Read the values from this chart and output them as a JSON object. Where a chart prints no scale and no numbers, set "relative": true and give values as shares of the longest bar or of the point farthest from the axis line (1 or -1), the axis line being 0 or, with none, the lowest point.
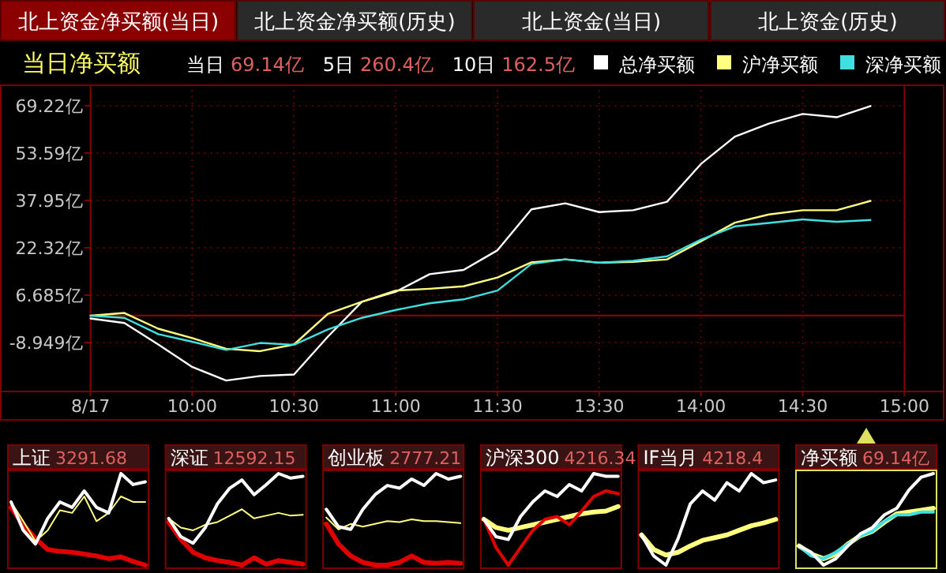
{
  "chart_data": [
    {
      "type": "line",
      "title": "当日净买额",
      "annotations": [
        "北上资金净买额(当日)",
        "北上资金净买额(历史)",
        "北上资金(当日)",
        "北上资金(历史)",
        "当日 69.14亿",
        "5日 260.4亿",
        "10日 162.5亿"
      ],
      "categories": [
        "8/17",
        null,
        null,
        "10:00",
        null,
        null,
        "10:30",
        null,
        null,
        "11:00",
        null,
        null,
        "11:30",
        null,
        null,
        "13:30",
        null,
        null,
        "14:00",
        null,
        null,
        "14:30",
        null,
        null,
        "15:00"
      ],
      "ylim": [
        -25.1,
        74.4
      ],
      "yticks": [
        {
          "value": 69.22,
          "label": "69.22亿"
        },
        {
          "value": 53.59,
          "label": "53.59亿"
        },
        {
          "value": 37.95,
          "label": "37.95亿"
        },
        {
          "value": 22.32,
          "label": "22.32亿"
        },
        {
          "value": 6.685,
          "label": "6.685亿"
        },
        {
          "value": -8.949,
          "label": "-8.949亿"
        }
      ],
      "grid": true,
      "legend": "top right",
      "ref_lines": [
        {
          "axis": "y",
          "value": 0,
          "color": "#990000"
        }
      ],
      "series": [
        {
          "name": "总净买额",
          "color": "#ffffff",
          "values": [
            -1.0,
            -2.5,
            -9.6,
            -17.0,
            -21.5,
            -20.0,
            -19.5,
            -7.0,
            4.5,
            7.8,
            13.6,
            15.0,
            21.5,
            35.0,
            37.0,
            34.1,
            34.7,
            37.5,
            50.0,
            59.0,
            63.3,
            66.5,
            65.4,
            69.1,
            null
          ]
        },
        {
          "name": "沪净买额",
          "color": "#ffff80",
          "values": [
            -0.1,
            0.8,
            -4.4,
            -7.5,
            -11.0,
            -11.8,
            -9.6,
            0.5,
            4.5,
            8.2,
            8.8,
            9.6,
            12.5,
            17.5,
            18.5,
            17.4,
            17.7,
            18.5,
            24.5,
            30.6,
            33.3,
            34.7,
            34.7,
            37.8,
            null
          ]
        },
        {
          "name": "深净买额",
          "color": "#40e0e0",
          "values": [
            -0.1,
            -0.8,
            -6.2,
            -8.7,
            -11.4,
            -9.1,
            -9.7,
            -4.6,
            -0.8,
            1.8,
            4.0,
            5.3,
            8.2,
            17.0,
            18.5,
            17.4,
            18.0,
            19.5,
            25.0,
            29.4,
            30.5,
            31.7,
            30.9,
            31.5,
            null
          ]
        }
      ]
    },
    {
      "type": "line",
      "relative": true,
      "title": "上证",
      "annotations": [
        "3291.68"
      ],
      "categories": [
        null,
        null,
        null,
        null,
        null,
        null,
        null,
        null,
        null,
        null,
        null,
        null
      ],
      "series": [
        {
          "color": "#e00000",
          "values": [
            0.63,
            0.44,
            0.29,
            0.17,
            0.15,
            0.14,
            0.12,
            0.1,
            0.07,
            0.09,
            0.04,
            0
          ]
        },
        {
          "color": "#ffff80",
          "values": [
            0.69,
            0.48,
            0.26,
            0.38,
            0.6,
            0.57,
            0.75,
            0.48,
            0.57,
            0.75,
            0.69,
            0.69
          ]
        },
        {
          "color": "#ffffff",
          "values": [
            0.69,
            0.38,
            0.23,
            0.51,
            0.69,
            0.63,
            0.81,
            0.63,
            0.57,
            1.0,
            0.88,
            0.91
          ]
        }
      ]
    },
    {
      "type": "line",
      "relative": true,
      "title": "深证",
      "annotations": [
        "12592.15"
      ],
      "categories": [
        null,
        null,
        null,
        null,
        null,
        null,
        null,
        null,
        null,
        null,
        null,
        null
      ],
      "series": [
        {
          "color": "#e00000",
          "values": [
            0.47,
            0.28,
            0.14,
            0.08,
            0.05,
            0.03,
            0,
            0.08,
            0.01,
            0.05,
            0.03,
            0.01
          ]
        },
        {
          "color": "#ffff80",
          "values": [
            0.51,
            0.41,
            0.38,
            0.44,
            0.47,
            0.54,
            0.61,
            0.51,
            0.54,
            0.57,
            0.54,
            0.55
          ]
        },
        {
          "color": "#ffffff",
          "values": [
            0.51,
            0.31,
            0.24,
            0.41,
            0.67,
            0.84,
            0.93,
            0.77,
            0.88,
            1.0,
            0.95,
            0.97
          ]
        }
      ]
    },
    {
      "type": "line",
      "relative": true,
      "title": "创业板",
      "annotations": [
        "2777.21"
      ],
      "categories": [
        null,
        null,
        null,
        null,
        null,
        null,
        null,
        null,
        null,
        null,
        null,
        null
      ],
      "series": [
        {
          "color": "#e00000",
          "values": [
            0.45,
            0.23,
            0.1,
            0.03,
            0,
            0,
            0.03,
            0.1,
            0.03,
            0.02,
            0.03,
            0.02
          ]
        },
        {
          "color": "#ffff80",
          "values": [
            0.52,
            0.39,
            0.45,
            0.42,
            0.45,
            0.48,
            0.47,
            0.5,
            0.48,
            0.48,
            0.47,
            0.46
          ]
        },
        {
          "color": "#ffffff",
          "values": [
            0.61,
            0.42,
            0.39,
            0.61,
            0.77,
            0.87,
            0.84,
            0.94,
            0.87,
            1.0,
            0.94,
            0.97
          ]
        }
      ]
    },
    {
      "type": "line",
      "relative": true,
      "title": "沪深300",
      "annotations": [
        "4216.34"
      ],
      "categories": [
        null,
        null,
        null,
        null,
        null,
        null,
        null,
        null,
        null,
        null,
        null,
        null
      ],
      "series": [
        {
          "color": "#ffff80",
          "values": [
            0.5,
            0.41,
            0.38,
            0.41,
            0.44,
            0.47,
            0.5,
            0.53,
            0.56,
            0.58,
            0.59,
            0.64
          ]
        },
        {
          "color": "#e00000",
          "values": [
            0.5,
            0.19,
            0,
            0.19,
            0.38,
            0.5,
            0.53,
            0.44,
            0.59,
            0.75,
            0.81,
            0.78
          ]
        },
        {
          "color": "#ffffff",
          "values": [
            0.5,
            0.31,
            0.28,
            0.53,
            0.69,
            0.81,
            0.75,
            0.88,
            0.81,
            1.0,
            0.97,
            0.97
          ]
        }
      ]
    },
    {
      "type": "line",
      "relative": true,
      "title": "IF当月",
      "annotations": [
        "4218.4"
      ],
      "categories": [
        null,
        null,
        null,
        null,
        null,
        null,
        null,
        null,
        null,
        null,
        null,
        null
      ],
      "series": [
        {
          "color": "#ffff80",
          "values": [
            0.33,
            0.17,
            0.11,
            0.14,
            0.21,
            0.27,
            0.3,
            0.33,
            0.38,
            0.43,
            0.46,
            0.5
          ]
        },
        {
          "color": "#ffffff",
          "values": [
            0.33,
            0.1,
            0,
            0.29,
            0.67,
            0.81,
            0.71,
            0.9,
            0.81,
            1.0,
            0.9,
            0.93
          ]
        }
      ]
    },
    {
      "type": "line",
      "relative": true,
      "title": "净买额",
      "annotations": [
        "69.14亿"
      ],
      "categories": [
        null,
        null,
        null,
        null,
        null,
        null,
        null,
        null,
        null,
        null,
        null,
        null
      ],
      "series": [
        {
          "color": "#ffff80",
          "values": [
            0.21,
            0.12,
            0.07,
            0.12,
            0.23,
            0.32,
            0.37,
            0.47,
            0.56,
            0.58,
            0.6,
            0.62
          ]
        },
        {
          "color": "#40e0e0",
          "values": [
            0.21,
            0.1,
            0.07,
            0.14,
            0.23,
            0.32,
            0.37,
            0.48,
            0.55,
            0.55,
            0.58,
            0.58
          ]
        },
        {
          "color": "#ffffff",
          "values": [
            0.21,
            0.14,
            0,
            0.07,
            0.21,
            0.34,
            0.41,
            0.55,
            0.62,
            0.82,
            0.96,
            1.0
          ]
        }
      ]
    }
  ]
}
